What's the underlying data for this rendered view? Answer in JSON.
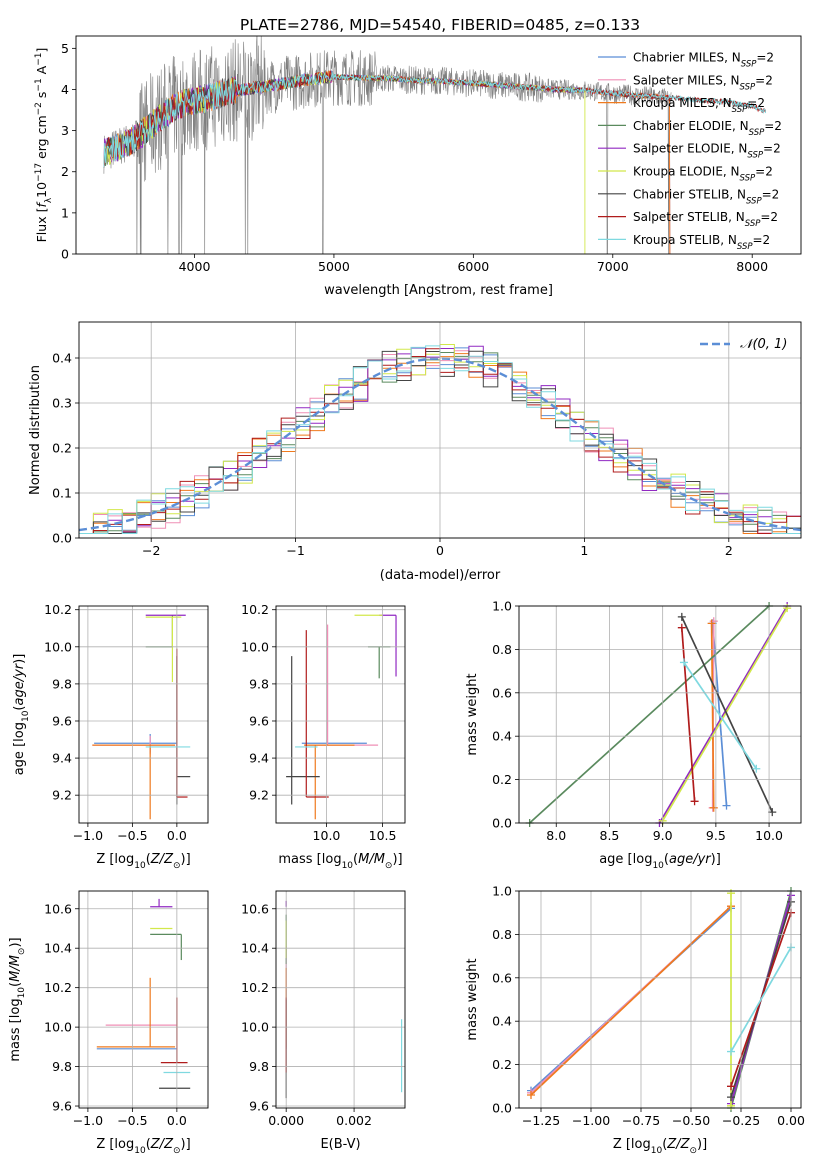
{
  "figure_title": "PLATE=2786, MJD=54540, FIBERID=0485, z=0.133",
  "colors": {
    "chabrier_miles": "#5b8ed6",
    "salpeter_miles": "#ef8fb6",
    "kroupa_miles": "#ef7a1e",
    "chabrier_elodie": "#5a8a5e",
    "salpeter_elodie": "#9129c2",
    "kroupa_elodie": "#d2e84b",
    "chabrier_stelib": "#444444",
    "salpeter_stelib": "#b01c1c",
    "kroupa_stelib": "#7fd9e0",
    "data": "#7f7f7f",
    "normal": "#5b8ed6"
  },
  "chart_data": [
    {
      "type": "line",
      "panel": "spectrum",
      "xlabel": "wavelength [Angstrom, rest frame]",
      "ylabel": "Flux [f_λ 10^-17 erg cm^-2 s^-1 A^-1]",
      "xlim": [
        3150,
        8350
      ],
      "ylim": [
        0,
        5.3
      ],
      "xticks": [
        "4000",
        "5000",
        "6000",
        "7000",
        "8000"
      ],
      "yticks": [
        "0",
        "1",
        "2",
        "3",
        "4",
        "5"
      ],
      "grid": false,
      "legend_position": "right",
      "legend": [
        {
          "label": "Chabrier MILES, N",
          "sub": "SSP",
          "tail": "=2",
          "key": "chabrier_miles"
        },
        {
          "label": "Salpeter MILES, N",
          "sub": "SSP",
          "tail": "=2",
          "key": "salpeter_miles"
        },
        {
          "label": "Kroupa MILES, N",
          "sub": "SSP",
          "tail": "=2",
          "key": "kroupa_miles"
        },
        {
          "label": "Chabrier ELODIE, N",
          "sub": "SSP",
          "tail": "=2",
          "key": "chabrier_elodie"
        },
        {
          "label": "Salpeter ELODIE, N",
          "sub": "SSP",
          "tail": "=2",
          "key": "salpeter_elodie"
        },
        {
          "label": "Kroupa ELODIE, N",
          "sub": "SSP",
          "tail": "=2",
          "key": "kroupa_elodie"
        },
        {
          "label": "Chabrier STELIB, N",
          "sub": "SSP",
          "tail": "=2",
          "key": "chabrier_stelib"
        },
        {
          "label": "Salpeter STELIB, N",
          "sub": "SSP",
          "tail": "=2",
          "key": "salpeter_stelib"
        },
        {
          "label": "Kroupa STELIB, N",
          "sub": "SSP",
          "tail": "=2",
          "key": "kroupa_stelib"
        }
      ],
      "model_continuum": [
        [
          3350,
          2.45
        ],
        [
          3450,
          2.6
        ],
        [
          3550,
          2.75
        ],
        [
          3650,
          3.0
        ],
        [
          3750,
          3.3
        ],
        [
          3850,
          3.55
        ],
        [
          3950,
          3.7
        ],
        [
          4050,
          3.75
        ],
        [
          4150,
          3.85
        ],
        [
          4250,
          3.95
        ],
        [
          4350,
          4.0
        ],
        [
          4450,
          4.05
        ],
        [
          4550,
          4.1
        ],
        [
          4650,
          4.15
        ],
        [
          4750,
          4.2
        ],
        [
          4850,
          4.25
        ],
        [
          4950,
          4.3
        ],
        [
          5050,
          4.3
        ],
        [
          5200,
          4.28
        ],
        [
          5400,
          4.27
        ],
        [
          5600,
          4.22
        ],
        [
          5800,
          4.2
        ],
        [
          6000,
          4.15
        ],
        [
          6200,
          4.1
        ],
        [
          6400,
          4.05
        ],
        [
          6600,
          4.0
        ],
        [
          6800,
          3.98
        ],
        [
          7000,
          3.9
        ],
        [
          7200,
          3.85
        ],
        [
          7400,
          3.8
        ],
        [
          7600,
          3.75
        ],
        [
          7800,
          3.7
        ],
        [
          8000,
          3.6
        ],
        [
          8100,
          3.45
        ]
      ],
      "model_edges": {
        "kroupa_elodie_end": 6800,
        "miles_end": 7410,
        "stelib_end": 8100,
        "data_start": 3350,
        "data_end": 7420
      }
    },
    {
      "type": "line",
      "panel": "residuals",
      "xlabel": "(data-model)/error",
      "ylabel": "Normed distribution",
      "xlim": [
        -2.5,
        2.5
      ],
      "ylim": [
        0,
        0.48
      ],
      "xticks": [
        -2,
        -1,
        0,
        1,
        2
      ],
      "yticks": [
        0.0,
        0.1,
        0.2,
        0.3,
        0.4
      ],
      "grid": true,
      "legend_position": "top-right",
      "legend": [
        {
          "label": "𝒩(0, 1)",
          "key": "normal"
        }
      ],
      "bin_width": 0.1,
      "bin_start": -2.5
    },
    {
      "type": "scatter",
      "panel": "age_vs_Z",
      "xlabel": "Z [log10(Z/Z⊙)]",
      "ylabel": "age [log10(age/yr)]",
      "xlim": [
        -1.1,
        0.35
      ],
      "ylim": [
        9.05,
        10.22
      ],
      "xticks": [
        -1.0,
        -0.5,
        0.0
      ],
      "yticks": [
        9.2,
        9.4,
        9.6,
        9.8,
        10.0,
        10.2
      ],
      "grid": true,
      "points": [
        {
          "key": "chabrier_miles",
          "x": -0.3,
          "y": 9.48,
          "xerr": [
            0.63,
            0.3
          ],
          "yerr": [
            0.05,
            0.05
          ]
        },
        {
          "key": "salpeter_miles",
          "x": -0.3,
          "y": 9.47,
          "xerr": [
            0.65,
            0.28
          ],
          "yerr": [
            0.05,
            0.05
          ]
        },
        {
          "key": "kroupa_miles",
          "x": -0.3,
          "y": 9.47,
          "xerr": [
            0.65,
            0.28
          ],
          "yerr": [
            0.4,
            0.0
          ]
        },
        {
          "key": "chabrier_elodie",
          "x": -0.05,
          "y": 10.0,
          "xerr": [
            0.3,
            0.0
          ],
          "yerr": [
            0.0,
            0.17
          ]
        },
        {
          "key": "salpeter_elodie",
          "x": -0.05,
          "y": 10.17,
          "xerr": [
            0.3,
            0.15
          ],
          "yerr": [
            0.0,
            0.0
          ]
        },
        {
          "key": "kroupa_elodie",
          "x": -0.05,
          "y": 10.16,
          "xerr": [
            0.3,
            0.1
          ],
          "yerr": [
            0.35,
            0.0
          ]
        },
        {
          "key": "chabrier_stelib",
          "x": 0.0,
          "y": 9.3,
          "xerr": [
            0.0,
            0.15
          ],
          "yerr": [
            0.15,
            0.65
          ]
        },
        {
          "key": "salpeter_stelib",
          "x": 0.0,
          "y": 9.19,
          "xerr": [
            0.0,
            0.12
          ],
          "yerr": [
            0.0,
            0.8
          ]
        },
        {
          "key": "kroupa_stelib",
          "x": -0.05,
          "y": 9.46,
          "xerr": [
            0.3,
            0.2
          ],
          "yerr": [
            0.0,
            0.0
          ]
        }
      ]
    },
    {
      "type": "scatter",
      "panel": "age_vs_mass",
      "xlabel": "mass [log10(M/M⊙)]",
      "ylabel": "",
      "xlim": [
        9.55,
        10.7
      ],
      "ylim": [
        9.05,
        10.22
      ],
      "xticks": [
        10.0,
        10.5
      ],
      "yticks": [
        9.2,
        9.4,
        9.6,
        9.8,
        10.0,
        10.2
      ],
      "grid": true,
      "points": [
        {
          "key": "chabrier_miles",
          "x": 9.88,
          "y": 9.48,
          "xerr": [
            0.1,
            0.48
          ],
          "yerr": [
            0.0,
            0.0
          ]
        },
        {
          "key": "salpeter_miles",
          "x": 10.01,
          "y": 9.47,
          "xerr": [
            0.2,
            0.45
          ],
          "yerr": [
            0.0,
            0.65
          ]
        },
        {
          "key": "kroupa_miles",
          "x": 9.9,
          "y": 9.47,
          "xerr": [
            0.1,
            0.35
          ],
          "yerr": [
            0.4,
            0.0
          ]
        },
        {
          "key": "chabrier_elodie",
          "x": 10.47,
          "y": 10.0,
          "xerr": [
            0.1,
            0.1
          ],
          "yerr": [
            0.17,
            0.0
          ]
        },
        {
          "key": "salpeter_elodie",
          "x": 10.62,
          "y": 10.17,
          "xerr": [
            0.15,
            0.0
          ],
          "yerr": [
            0.33,
            0.0
          ]
        },
        {
          "key": "kroupa_elodie",
          "x": 10.5,
          "y": 10.17,
          "xerr": [
            0.25,
            0.0
          ],
          "yerr": [
            0.0,
            0.0
          ]
        },
        {
          "key": "chabrier_stelib",
          "x": 9.69,
          "y": 9.3,
          "xerr": [
            0.05,
            0.25
          ],
          "yerr": [
            0.15,
            0.65
          ]
        },
        {
          "key": "salpeter_stelib",
          "x": 9.82,
          "y": 9.19,
          "xerr": [
            0.0,
            0.2
          ],
          "yerr": [
            0.0,
            0.9
          ]
        },
        {
          "key": "kroupa_stelib",
          "x": 9.77,
          "y": 9.46,
          "xerr": [
            0.05,
            0.15
          ],
          "yerr": [
            0.0,
            0.0
          ]
        }
      ]
    },
    {
      "type": "line",
      "panel": "weight_vs_age",
      "xlabel": "age [log10(age/yr)]",
      "ylabel": "mass weight",
      "xlim": [
        7.65,
        10.3
      ],
      "ylim": [
        0,
        1.0
      ],
      "xticks": [
        8.0,
        8.5,
        9.0,
        9.5,
        10.0
      ],
      "yticks": [
        0.0,
        0.2,
        0.4,
        0.6,
        0.8,
        1.0
      ],
      "grid": true,
      "series": [
        {
          "key": "chabrier_miles",
          "x": [
            9.47,
            9.6
          ],
          "y": [
            0.92,
            0.08
          ]
        },
        {
          "key": "salpeter_miles",
          "x": [
            9.48,
            9.47
          ],
          "y": [
            0.93,
            0.07
          ]
        },
        {
          "key": "kroupa_miles",
          "x": [
            9.46,
            9.48
          ],
          "y": [
            0.92,
            0.07
          ]
        },
        {
          "key": "chabrier_elodie",
          "x": [
            7.75,
            10.0
          ],
          "y": [
            0.0,
            1.0
          ]
        },
        {
          "key": "salpeter_elodie",
          "x": [
            8.97,
            10.17
          ],
          "y": [
            0.0,
            1.0
          ]
        },
        {
          "key": "kroupa_elodie",
          "x": [
            9.0,
            10.17
          ],
          "y": [
            0.01,
            0.99
          ]
        },
        {
          "key": "chabrier_stelib",
          "x": [
            9.18,
            10.03
          ],
          "y": [
            0.95,
            0.05
          ]
        },
        {
          "key": "salpeter_stelib",
          "x": [
            9.18,
            9.3
          ],
          "y": [
            0.9,
            0.1
          ]
        },
        {
          "key": "kroupa_stelib",
          "x": [
            9.2,
            9.88
          ],
          "y": [
            0.74,
            0.25
          ]
        }
      ]
    },
    {
      "type": "scatter",
      "panel": "mass_vs_Z",
      "xlabel": "Z [log10(Z/Z⊙)]",
      "ylabel": "mass [log10(M/M⊙)]",
      "xlim": [
        -1.1,
        0.35
      ],
      "ylim": [
        9.59,
        10.69
      ],
      "xticks": [
        -1.0,
        -0.5,
        0.0
      ],
      "yticks": [
        9.6,
        9.8,
        10.0,
        10.2,
        10.4,
        10.6
      ],
      "grid": true,
      "points": [
        {
          "key": "chabrier_miles",
          "x": -0.3,
          "y": 9.89,
          "xerr": [
            0.6,
            0.3
          ],
          "yerr": [
            0.0,
            0.0
          ]
        },
        {
          "key": "salpeter_miles",
          "x": -0.3,
          "y": 10.01,
          "xerr": [
            0.5,
            0.3
          ],
          "yerr": [
            0.0,
            0.0
          ]
        },
        {
          "key": "kroupa_miles",
          "x": -0.3,
          "y": 9.9,
          "xerr": [
            0.6,
            0.28
          ],
          "yerr": [
            0.0,
            0.35
          ]
        },
        {
          "key": "chabrier_elodie",
          "x": 0.05,
          "y": 10.47,
          "xerr": [
            0.35,
            0.0
          ],
          "yerr": [
            0.13,
            0.0
          ]
        },
        {
          "key": "salpeter_elodie",
          "x": -0.2,
          "y": 10.61,
          "xerr": [
            0.1,
            0.15
          ],
          "yerr": [
            0.0,
            0.04
          ]
        },
        {
          "key": "kroupa_elodie",
          "x": -0.2,
          "y": 10.5,
          "xerr": [
            0.1,
            0.15
          ],
          "yerr": [
            0.0,
            0.0
          ]
        },
        {
          "key": "chabrier_stelib",
          "x": 0.0,
          "y": 9.69,
          "xerr": [
            0.2,
            0.15
          ],
          "yerr": [
            0.0,
            0.0
          ]
        },
        {
          "key": "salpeter_stelib",
          "x": 0.0,
          "y": 9.82,
          "xerr": [
            0.18,
            0.12
          ],
          "yerr": [
            0.0,
            0.33
          ]
        },
        {
          "key": "kroupa_stelib",
          "x": 0.0,
          "y": 9.77,
          "xerr": [
            0.15,
            0.15
          ],
          "yerr": [
            0.0,
            0.0
          ]
        }
      ]
    },
    {
      "type": "scatter",
      "panel": "mass_vs_ebv",
      "xlabel": "E(B-V)",
      "ylabel": "",
      "xlim": [
        -0.0003,
        0.0035
      ],
      "ylim": [
        9.59,
        10.69
      ],
      "xticks": [
        "0.000",
        "0.002"
      ],
      "yticks": [
        9.6,
        9.8,
        10.0,
        10.2,
        10.4,
        10.6
      ],
      "grid": true,
      "points": [
        {
          "key": "chabrier_miles",
          "x": 0.0,
          "y": 9.89,
          "yerr": [
            0.0,
            0.3
          ]
        },
        {
          "key": "salpeter_miles",
          "x": 0.0,
          "y": 10.01,
          "yerr": [
            0.0,
            0.4
          ]
        },
        {
          "key": "kroupa_miles",
          "x": 0.0,
          "y": 9.9,
          "yerr": [
            0.0,
            0.4
          ]
        },
        {
          "key": "chabrier_elodie",
          "x": 0.0,
          "y": 10.47,
          "yerr": [
            0.15,
            0.1
          ]
        },
        {
          "key": "salpeter_elodie",
          "x": 0.0,
          "y": 10.61,
          "yerr": [
            0.0,
            0.03
          ]
        },
        {
          "key": "kroupa_elodie",
          "x": 0.0,
          "y": 10.5,
          "yerr": [
            0.15,
            0.04
          ]
        },
        {
          "key": "chabrier_stelib",
          "x": 0.0,
          "y": 9.69,
          "yerr": [
            0.05,
            0.45
          ]
        },
        {
          "key": "salpeter_stelib",
          "x": 0.0,
          "y": 9.82,
          "yerr": [
            0.05,
            0.33
          ]
        },
        {
          "key": "kroupa_stelib",
          "x": 0.0034,
          "y": 9.77,
          "yerr": [
            0.1,
            0.27
          ]
        }
      ]
    },
    {
      "type": "line",
      "panel": "weight_vs_Z",
      "xlabel": "Z [log10(Z/Z⊙)]",
      "ylabel": "mass weight",
      "xlim": [
        -1.36,
        0.05
      ],
      "ylim": [
        0,
        1.0
      ],
      "xticks": [
        "−1.25",
        "−1.00",
        "−0.75",
        "−0.50",
        "−0.25",
        "0.00"
      ],
      "yticks": [
        0.0,
        0.2,
        0.4,
        0.6,
        0.8,
        1.0
      ],
      "grid": true,
      "series": [
        {
          "key": "chabrier_miles",
          "x": [
            -1.3,
            -0.3
          ],
          "y": [
            0.08,
            0.92
          ]
        },
        {
          "key": "salpeter_miles",
          "x": [
            -1.3,
            -0.3
          ],
          "y": [
            0.07,
            0.93
          ]
        },
        {
          "key": "kroupa_miles",
          "x": [
            -1.3,
            -0.3
          ],
          "y": [
            0.06,
            0.93
          ]
        },
        {
          "key": "chabrier_elodie",
          "x": [
            -0.3,
            0.0
          ],
          "y": [
            0.0,
            1.0
          ]
        },
        {
          "key": "salpeter_elodie",
          "x": [
            -0.3,
            0.0
          ],
          "y": [
            0.02,
            0.98
          ]
        },
        {
          "key": "kroupa_elodie",
          "x": [
            -0.3,
            -0.3
          ],
          "y": [
            0.01,
            0.99
          ]
        },
        {
          "key": "chabrier_stelib",
          "x": [
            -0.3,
            0.0
          ],
          "y": [
            0.05,
            0.95
          ]
        },
        {
          "key": "salpeter_stelib",
          "x": [
            -0.3,
            0.0
          ],
          "y": [
            0.1,
            0.9
          ]
        },
        {
          "key": "kroupa_stelib",
          "x": [
            -0.3,
            0.0
          ],
          "y": [
            0.26,
            0.74
          ]
        }
      ]
    }
  ]
}
